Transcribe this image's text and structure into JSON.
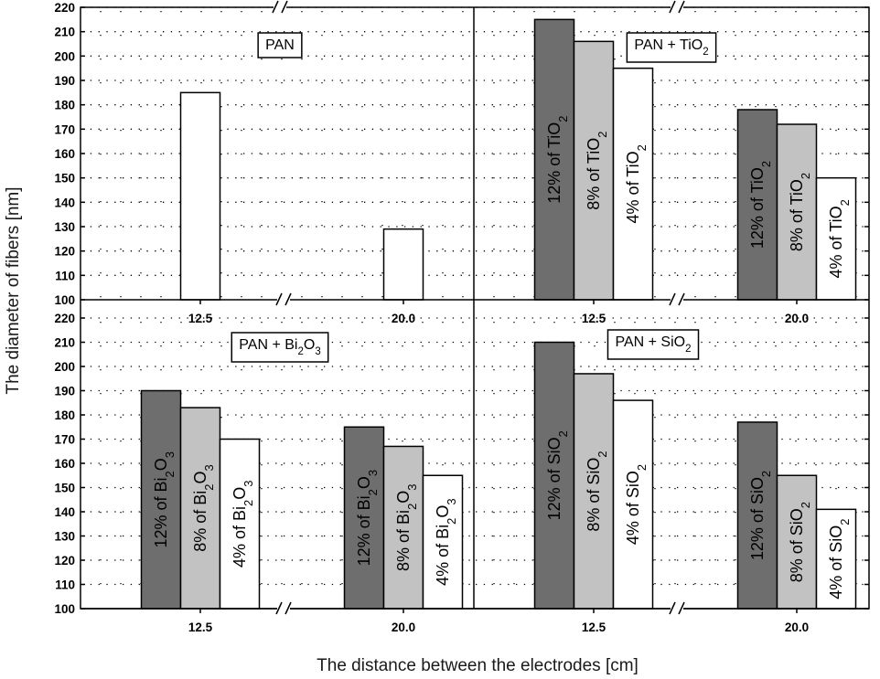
{
  "chart_data": {
    "type": "bar",
    "layout": "2x2 panels, shared axes",
    "xlabel": "The distance between the electrodes [cm]",
    "ylabel": "The diameter of fibers [nm]",
    "categories": [
      "12.5",
      "20.0"
    ],
    "ylim": [
      100,
      220
    ],
    "yticks": [
      "100",
      "110",
      "120",
      "130",
      "140",
      "150",
      "160",
      "170",
      "180",
      "190",
      "200",
      "210",
      "220"
    ],
    "grid": "dotted",
    "axis_break_marker": "//",
    "colors": {
      "dark": "#6e6e6e",
      "light": "#c2c2c2",
      "white": "#ffffff",
      "edge": "#000000"
    },
    "panels": [
      {
        "title": {
          "base": "PAN",
          "sub": "",
          "tail": ""
        },
        "series": [
          {
            "values": [
              185,
              129
            ],
            "color": "white",
            "label": {
              "pre": "",
              "sub1": "",
              "mid": "",
              "sub2": ""
            }
          }
        ]
      },
      {
        "title": {
          "base": "PAN + TiO",
          "sub": "2",
          "tail": ""
        },
        "series": [
          {
            "values": [
              215,
              178
            ],
            "color": "dark",
            "label": {
              "pre": "12% of TiO",
              "sub1": "2",
              "mid": "",
              "sub2": ""
            }
          },
          {
            "values": [
              206,
              172
            ],
            "color": "light",
            "label": {
              "pre": "8% of TiO",
              "sub1": "2",
              "mid": "",
              "sub2": ""
            }
          },
          {
            "values": [
              195,
              150
            ],
            "color": "white",
            "label": {
              "pre": "4% of TiO",
              "sub1": "2",
              "mid": "",
              "sub2": ""
            }
          }
        ]
      },
      {
        "title": {
          "base": "PAN + Bi",
          "sub": "2",
          "tail": "O",
          "sub2": "3"
        },
        "series": [
          {
            "values": [
              190,
              175
            ],
            "color": "dark",
            "label": {
              "pre": "12% of Bi",
              "sub1": "2",
              "mid": "O",
              "sub2": "3"
            }
          },
          {
            "values": [
              183,
              167
            ],
            "color": "light",
            "label": {
              "pre": "8% of Bi",
              "sub1": "2",
              "mid": "O",
              "sub2": "3"
            }
          },
          {
            "values": [
              170,
              155
            ],
            "color": "white",
            "label": {
              "pre": "4% of Bi",
              "sub1": "2",
              "mid": "O",
              "sub2": "3"
            }
          }
        ]
      },
      {
        "title": {
          "base": "PAN + SiO",
          "sub": "2",
          "tail": ""
        },
        "series": [
          {
            "values": [
              210,
              177
            ],
            "color": "dark",
            "label": {
              "pre": "12% of SiO",
              "sub1": "2",
              "mid": "",
              "sub2": ""
            }
          },
          {
            "values": [
              197,
              155
            ],
            "color": "light",
            "label": {
              "pre": "8% of SiO",
              "sub1": "2",
              "mid": "",
              "sub2": ""
            }
          },
          {
            "values": [
              186,
              141
            ],
            "color": "white",
            "label": {
              "pre": "4% of SiO",
              "sub1": "2",
              "mid": "",
              "sub2": ""
            }
          }
        ]
      }
    ]
  }
}
